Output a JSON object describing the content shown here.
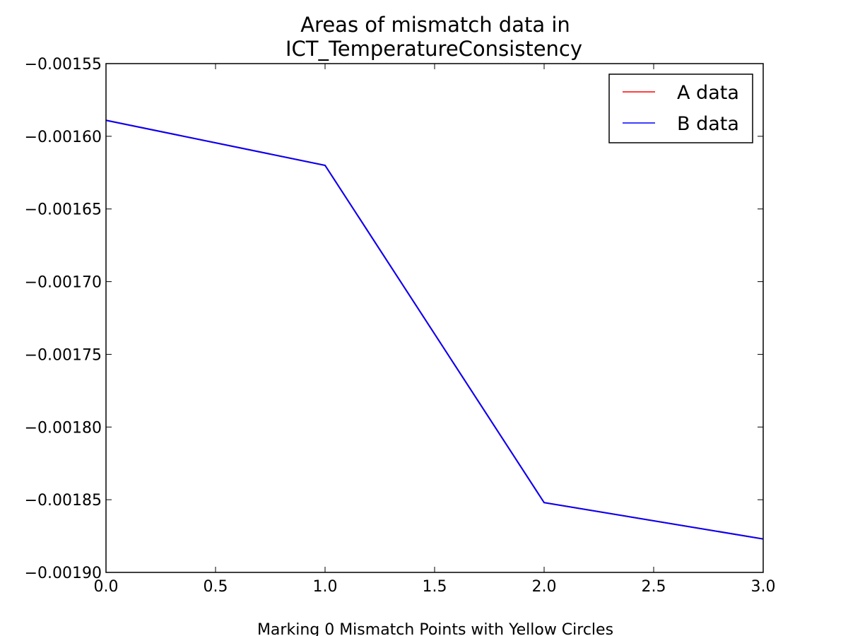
{
  "chart_data": {
    "type": "line",
    "title_lines": [
      "Areas of mismatch data in",
      "ICT_TemperatureConsistency"
    ],
    "xlabel": "Marking 0 Mismatch Points with Yellow Circles",
    "ylabel": "",
    "xlim": [
      0.0,
      3.0
    ],
    "ylim": [
      -0.0019,
      -0.00155
    ],
    "x_ticks": [
      0.0,
      0.5,
      1.0,
      1.5,
      2.0,
      2.5,
      3.0
    ],
    "x_tick_labels": [
      "0.0",
      "0.5",
      "1.0",
      "1.5",
      "2.0",
      "2.5",
      "3.0"
    ],
    "y_ticks": [
      -0.00155,
      -0.0016,
      -0.00165,
      -0.0017,
      -0.00175,
      -0.0018,
      -0.00185,
      -0.0019
    ],
    "y_tick_labels": [
      "−0.00155",
      "−0.00160",
      "−0.00165",
      "−0.00170",
      "−0.00175",
      "−0.00180",
      "−0.00185",
      "−0.00190"
    ],
    "grid": false,
    "legend_position": "top-right",
    "x": [
      0,
      1,
      2,
      3
    ],
    "series": [
      {
        "name": "A data",
        "color": "#ff0000",
        "values": [
          -0.001589,
          -0.00162,
          -0.001852,
          -0.001877
        ]
      },
      {
        "name": "B data",
        "color": "#0000ff",
        "values": [
          -0.001589,
          -0.00162,
          -0.001852,
          -0.001877
        ]
      }
    ]
  }
}
